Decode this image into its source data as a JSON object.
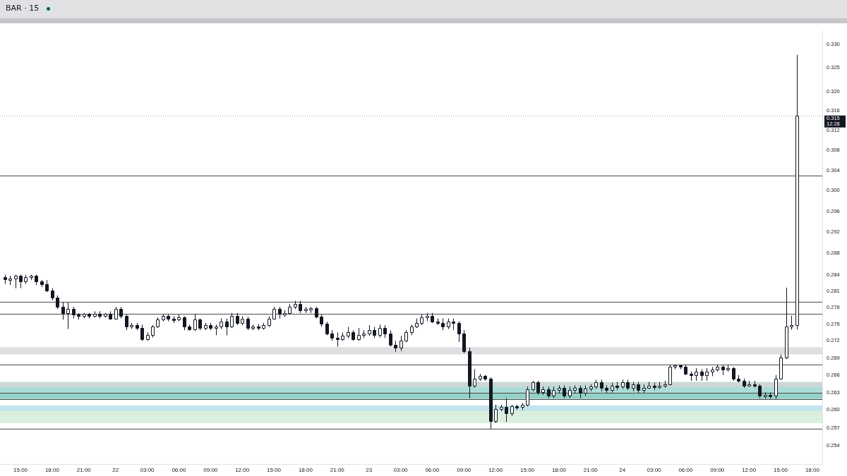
{
  "chart_data": {
    "type": "candlestick",
    "title": "BAR · 15",
    "categories": [
      null,
      null,
      null,
      "15:00",
      null,
      null,
      null,
      null,
      null,
      "18:00",
      null,
      null,
      null,
      null,
      null,
      "21:00",
      null,
      null,
      null,
      null,
      null,
      "22",
      null,
      null,
      null,
      null,
      null,
      "03:00",
      null,
      null,
      null,
      null,
      null,
      "06:00",
      null,
      null,
      null,
      null,
      null,
      "09:00",
      null,
      null,
      null,
      null,
      null,
      "12:00",
      null,
      null,
      null,
      null,
      null,
      "15:00",
      null,
      null,
      null,
      null,
      null,
      "18:00",
      null,
      null,
      null,
      null,
      null,
      "21:00",
      null,
      null,
      null,
      null,
      null,
      "23",
      null,
      null,
      null,
      null,
      null,
      "03:00",
      null,
      null,
      null,
      null,
      null,
      "06:00",
      null,
      null,
      null,
      null,
      null,
      "09:00",
      null,
      null,
      null,
      null,
      null,
      "12:00",
      null,
      null,
      null,
      null,
      null,
      "15:00",
      null,
      null,
      null,
      null,
      null,
      "18:00",
      null,
      null,
      null,
      null,
      null,
      "21:00",
      null,
      null,
      null,
      null,
      null,
      "24",
      null,
      null,
      null,
      null,
      null,
      "03:00",
      null,
      null,
      null,
      null,
      null,
      "06:00",
      null,
      null,
      null,
      null,
      null,
      "09:00",
      null,
      null,
      null,
      null,
      null,
      "12:00",
      null,
      null,
      null,
      null,
      null,
      "15:00",
      null,
      null,
      null,
      null,
      null,
      "18:00",
      null
    ],
    "ohlc": [
      [
        0.2836,
        0.284,
        0.2823,
        0.2831
      ],
      [
        0.2831,
        0.2838,
        0.2821,
        0.2833
      ],
      [
        0.2833,
        0.284,
        0.2815,
        0.2838
      ],
      [
        0.2838,
        0.284,
        0.2815,
        0.2827
      ],
      [
        0.2827,
        0.284,
        0.2823,
        0.2836
      ],
      [
        0.2836,
        0.284,
        0.283,
        0.2838
      ],
      [
        0.2838,
        0.284,
        0.2821,
        0.2827
      ],
      [
        0.2827,
        0.283,
        0.2817,
        0.2823
      ],
      [
        0.2823,
        0.283,
        0.2808,
        0.2811
      ],
      [
        0.2811,
        0.2815,
        0.2793,
        0.2798
      ],
      [
        0.2798,
        0.2802,
        0.2777,
        0.2781
      ],
      [
        0.2781,
        0.2789,
        0.2758,
        0.277
      ],
      [
        0.277,
        0.2789,
        0.2741,
        0.2777
      ],
      [
        0.2777,
        0.2781,
        0.276,
        0.2767
      ],
      [
        0.2767,
        0.277,
        0.2758,
        0.2764
      ],
      [
        0.2764,
        0.277,
        0.276,
        0.2768
      ],
      [
        0.2768,
        0.277,
        0.276,
        0.2765
      ],
      [
        0.2765,
        0.2773,
        0.2762,
        0.2769
      ],
      [
        0.2769,
        0.2773,
        0.276,
        0.2764
      ],
      [
        0.2764,
        0.277,
        0.2762,
        0.2768
      ],
      [
        0.2768,
        0.2773,
        0.2758,
        0.276
      ],
      [
        0.276,
        0.2781,
        0.2758,
        0.2777
      ],
      [
        0.2777,
        0.2781,
        0.276,
        0.2764
      ],
      [
        0.2764,
        0.2767,
        0.2739,
        0.2745
      ],
      [
        0.2745,
        0.2752,
        0.2741,
        0.2748
      ],
      [
        0.2748,
        0.2752,
        0.2739,
        0.2743
      ],
      [
        0.2743,
        0.2749,
        0.272,
        0.2723
      ],
      [
        0.2723,
        0.2735,
        0.272,
        0.273
      ],
      [
        0.273,
        0.2748,
        0.2726,
        0.2745
      ],
      [
        0.2745,
        0.2762,
        0.2743,
        0.2758
      ],
      [
        0.2758,
        0.2768,
        0.2755,
        0.2764
      ],
      [
        0.2764,
        0.2768,
        0.2755,
        0.276
      ],
      [
        0.276,
        0.2764,
        0.2752,
        0.2758
      ],
      [
        0.2758,
        0.2767,
        0.2755,
        0.2762
      ],
      [
        0.2762,
        0.2764,
        0.2739,
        0.2745
      ],
      [
        0.2745,
        0.2749,
        0.2738,
        0.274
      ],
      [
        0.274,
        0.2768,
        0.2738,
        0.2758
      ],
      [
        0.2758,
        0.276,
        0.2739,
        0.2743
      ],
      [
        0.2743,
        0.2752,
        0.2739,
        0.2748
      ],
      [
        0.2748,
        0.2752,
        0.2739,
        0.2743
      ],
      [
        0.2743,
        0.2749,
        0.273,
        0.2745
      ],
      [
        0.2745,
        0.276,
        0.2741,
        0.2755
      ],
      [
        0.2755,
        0.276,
        0.273,
        0.2745
      ],
      [
        0.2745,
        0.277,
        0.2743,
        0.2764
      ],
      [
        0.2764,
        0.277,
        0.2748,
        0.2752
      ],
      [
        0.2752,
        0.2764,
        0.2748,
        0.276
      ],
      [
        0.276,
        0.2763,
        0.2739,
        0.2743
      ],
      [
        0.2743,
        0.2749,
        0.2739,
        0.2745
      ],
      [
        0.2745,
        0.275,
        0.2739,
        0.2743
      ],
      [
        0.2743,
        0.2752,
        0.274,
        0.2748
      ],
      [
        0.2748,
        0.2764,
        0.2745,
        0.276
      ],
      [
        0.276,
        0.2781,
        0.2758,
        0.2777
      ],
      [
        0.2777,
        0.2781,
        0.276,
        0.2768
      ],
      [
        0.2768,
        0.2775,
        0.2763,
        0.277
      ],
      [
        0.277,
        0.2786,
        0.2768,
        0.2781
      ],
      [
        0.2781,
        0.2792,
        0.2777,
        0.2786
      ],
      [
        0.2786,
        0.2792,
        0.277,
        0.2775
      ],
      [
        0.2775,
        0.2781,
        0.277,
        0.2777
      ],
      [
        0.2777,
        0.2781,
        0.277,
        0.2778
      ],
      [
        0.2778,
        0.2781,
        0.276,
        0.2763
      ],
      [
        0.2763,
        0.2767,
        0.2745,
        0.275
      ],
      [
        0.275,
        0.2754,
        0.273,
        0.2733
      ],
      [
        0.2733,
        0.2739,
        0.272,
        0.2726
      ],
      [
        0.2726,
        0.2735,
        0.271,
        0.2723
      ],
      [
        0.2723,
        0.2735,
        0.272,
        0.2729
      ],
      [
        0.2729,
        0.2745,
        0.2725,
        0.2735
      ],
      [
        0.2735,
        0.2739,
        0.272,
        0.2723
      ],
      [
        0.2723,
        0.2743,
        0.272,
        0.273
      ],
      [
        0.273,
        0.2739,
        0.2725,
        0.2733
      ],
      [
        0.2733,
        0.2748,
        0.2729,
        0.2739
      ],
      [
        0.2739,
        0.2745,
        0.2725,
        0.273
      ],
      [
        0.273,
        0.2749,
        0.2726,
        0.2743
      ],
      [
        0.2743,
        0.2748,
        0.2725,
        0.2733
      ],
      [
        0.2733,
        0.2739,
        0.271,
        0.2713
      ],
      [
        0.2713,
        0.272,
        0.27,
        0.2708
      ],
      [
        0.2708,
        0.2729,
        0.2702,
        0.272
      ],
      [
        0.272,
        0.2739,
        0.2718,
        0.2735
      ],
      [
        0.2735,
        0.2749,
        0.273,
        0.2745
      ],
      [
        0.2745,
        0.276,
        0.2743,
        0.2752
      ],
      [
        0.2752,
        0.2767,
        0.2748,
        0.2762
      ],
      [
        0.2762,
        0.277,
        0.2755,
        0.2764
      ],
      [
        0.2764,
        0.277,
        0.2752,
        0.2755
      ],
      [
        0.2755,
        0.276,
        0.2748,
        0.2752
      ],
      [
        0.2752,
        0.276,
        0.2739,
        0.2745
      ],
      [
        0.2745,
        0.276,
        0.2741,
        0.2755
      ],
      [
        0.2755,
        0.276,
        0.2739,
        0.2752
      ],
      [
        0.2752,
        0.2755,
        0.2718,
        0.2733
      ],
      [
        0.2733,
        0.2739,
        0.2698,
        0.2702
      ],
      [
        0.2702,
        0.2708,
        0.262,
        0.2642
      ],
      [
        0.2642,
        0.267,
        0.2638,
        0.2654
      ],
      [
        0.2654,
        0.2662,
        0.265,
        0.2658
      ],
      [
        0.2658,
        0.266,
        0.265,
        0.2654
      ],
      [
        0.2654,
        0.2656,
        0.2568,
        0.2582
      ],
      [
        0.2582,
        0.2609,
        0.2578,
        0.2602
      ],
      [
        0.2602,
        0.2609,
        0.2598,
        0.2605
      ],
      [
        0.2605,
        0.262,
        0.258,
        0.2594
      ],
      [
        0.2594,
        0.2609,
        0.259,
        0.2606
      ],
      [
        0.2606,
        0.2609,
        0.26,
        0.2605
      ],
      [
        0.2605,
        0.2612,
        0.26,
        0.2609
      ],
      [
        0.2609,
        0.264,
        0.2606,
        0.2636
      ],
      [
        0.2636,
        0.265,
        0.2632,
        0.2648
      ],
      [
        0.2648,
        0.265,
        0.2626,
        0.263
      ],
      [
        0.263,
        0.264,
        0.2626,
        0.2636
      ],
      [
        0.2636,
        0.264,
        0.262,
        0.2624
      ],
      [
        0.2624,
        0.264,
        0.262,
        0.2634
      ],
      [
        0.2634,
        0.2642,
        0.2629,
        0.2638
      ],
      [
        0.2638,
        0.2642,
        0.262,
        0.2624
      ],
      [
        0.2624,
        0.264,
        0.262,
        0.2634
      ],
      [
        0.2634,
        0.2642,
        0.2629,
        0.2638
      ],
      [
        0.2638,
        0.2642,
        0.262,
        0.2629
      ],
      [
        0.2629,
        0.2642,
        0.2624,
        0.2637
      ],
      [
        0.2637,
        0.2644,
        0.2632,
        0.264
      ],
      [
        0.264,
        0.2652,
        0.2636,
        0.2648
      ],
      [
        0.2648,
        0.2652,
        0.2632,
        0.2638
      ],
      [
        0.2638,
        0.2642,
        0.2629,
        0.2634
      ],
      [
        0.2634,
        0.2647,
        0.263,
        0.2642
      ],
      [
        0.2642,
        0.2648,
        0.2634,
        0.264
      ],
      [
        0.264,
        0.2652,
        0.2636,
        0.2648
      ],
      [
        0.2648,
        0.2652,
        0.2634,
        0.2638
      ],
      [
        0.2638,
        0.2648,
        0.2632,
        0.2644
      ],
      [
        0.2644,
        0.2648,
        0.2629,
        0.2634
      ],
      [
        0.2634,
        0.2644,
        0.2629,
        0.2638
      ],
      [
        0.2638,
        0.2648,
        0.2636,
        0.2642
      ],
      [
        0.2642,
        0.2647,
        0.2634,
        0.264
      ],
      [
        0.264,
        0.2648,
        0.2636,
        0.2642
      ],
      [
        0.2642,
        0.265,
        0.2638,
        0.2644
      ],
      [
        0.2644,
        0.2678,
        0.2642,
        0.2674
      ],
      [
        0.2674,
        0.2678,
        0.267,
        0.2677
      ],
      [
        0.2677,
        0.2678,
        0.267,
        0.2674
      ],
      [
        0.2674,
        0.2678,
        0.266,
        0.2662
      ],
      [
        0.2662,
        0.2666,
        0.265,
        0.266
      ],
      [
        0.266,
        0.2672,
        0.265,
        0.2666
      ],
      [
        0.2666,
        0.267,
        0.265,
        0.266
      ],
      [
        0.266,
        0.2672,
        0.265,
        0.2666
      ],
      [
        0.2666,
        0.2674,
        0.2658,
        0.267
      ],
      [
        0.267,
        0.2678,
        0.2666,
        0.2674
      ],
      [
        0.2674,
        0.2678,
        0.266,
        0.267
      ],
      [
        0.267,
        0.2678,
        0.2666,
        0.2672
      ],
      [
        0.2672,
        0.2674,
        0.265,
        0.2654
      ],
      [
        0.2654,
        0.266,
        0.2647,
        0.265
      ],
      [
        0.265,
        0.2654,
        0.2638,
        0.2642
      ],
      [
        0.2642,
        0.265,
        0.264,
        0.2644
      ],
      [
        0.2644,
        0.265,
        0.2638,
        0.2642
      ],
      [
        0.2642,
        0.2644,
        0.262,
        0.2624
      ],
      [
        0.2624,
        0.263,
        0.2619,
        0.2626
      ],
      [
        0.2626,
        0.263,
        0.2619,
        0.2624
      ],
      [
        0.2624,
        0.266,
        0.2619,
        0.2654
      ],
      [
        0.2654,
        0.2696,
        0.2652,
        0.269
      ],
      [
        0.269,
        0.2816,
        0.2688,
        0.2745
      ],
      [
        0.2745,
        0.2765,
        0.274,
        0.2748
      ],
      [
        0.2748,
        0.3278,
        0.274,
        0.315
      ],
      null,
      null,
      null,
      null
    ],
    "colors": [
      "#131722",
      "#ffffff",
      "#ffffff",
      "#131722",
      "#ffffff",
      "#ffffff",
      "#131722",
      "#131722",
      "#131722",
      "#131722",
      "#131722",
      "#131722",
      "#ffffff",
      "#131722",
      "#131722",
      "#ffffff",
      "#131722",
      "#ffffff",
      "#131722",
      "#ffffff",
      "#131722",
      "#ffffff",
      "#131722",
      "#131722",
      "#ffffff",
      "#131722",
      "#131722",
      "#ffffff",
      "#ffffff",
      "#ffffff",
      "#ffffff",
      "#131722",
      "#131722",
      "#ffffff",
      "#131722",
      "#131722",
      "#ffffff",
      "#131722",
      "#ffffff",
      "#131722",
      "#ffffff",
      "#ffffff",
      "#131722",
      "#ffffff",
      "#131722",
      "#ffffff",
      "#131722",
      "#ffffff",
      "#131722",
      "#ffffff",
      "#ffffff",
      "#ffffff",
      "#131722",
      "#ffffff",
      "#ffffff",
      "#ffffff",
      "#131722",
      "#ffffff",
      "#ffffff",
      "#131722",
      "#131722",
      "#131722",
      "#131722",
      "#131722",
      "#ffffff",
      "#ffffff",
      "#131722",
      "#ffffff",
      "#ffffff",
      "#ffffff",
      "#131722",
      "#ffffff",
      "#131722",
      "#131722",
      "#131722",
      "#ffffff",
      "#ffffff",
      "#ffffff",
      "#ffffff",
      "#ffffff",
      "#ffffff",
      "#131722",
      "#131722",
      "#131722",
      "#ffffff",
      "#131722",
      "#131722",
      "#131722",
      "#131722",
      "#ffffff",
      "#ffffff",
      "#131722",
      "#131722",
      "#ffffff",
      "#ffffff",
      "#131722",
      "#ffffff",
      "#131722",
      "#ffffff",
      "#ffffff",
      "#ffffff",
      "#131722",
      "#ffffff",
      "#131722",
      "#ffffff",
      "#ffffff",
      "#131722",
      "#ffffff",
      "#ffffff",
      "#131722",
      "#ffffff",
      "#ffffff",
      "#ffffff",
      "#131722",
      "#131722",
      "#ffffff",
      "#131722",
      "#ffffff",
      "#131722",
      "#ffffff",
      "#131722",
      "#ffffff",
      "#ffffff",
      "#131722",
      "#ffffff",
      "#ffffff",
      "#ffffff",
      "#ffffff",
      "#131722",
      "#131722",
      "#131722",
      "#ffffff",
      "#131722",
      "#ffffff",
      "#ffffff",
      "#ffffff",
      "#131722",
      "#ffffff",
      "#131722",
      "#131722",
      "#131722",
      "#ffffff",
      "#131722",
      "#131722",
      "#ffffff",
      "#131722",
      "#ffffff",
      "#ffffff",
      "#ffffff",
      "#ffffff",
      "#ffffff",
      null,
      null,
      null,
      null
    ],
    "ylim": [
      0.251,
      0.333
    ],
    "yticks": [
      0.254,
      0.257,
      {
        "value": 0.26,
        "label": "0.260"
      },
      0.263,
      0.266,
      0.269,
      0.272,
      0.275,
      0.278,
      0.281,
      0.284,
      0.288,
      0.292,
      0.296,
      {
        "value": 0.3,
        "label": "0.300"
      },
      0.304,
      0.308,
      0.312,
      0.316,
      {
        "value": 0.32,
        "label": "0.320"
      },
      0.325,
      {
        "value": 0.33,
        "label": "0.330"
      }
    ],
    "log": "y",
    "bands": [
      {
        "axis": "y",
        "from": 0.2629,
        "to": 0.2648,
        "color": "#e0f1f4"
      },
      {
        "axis": "y",
        "from": 0.2598,
        "to": 0.2608,
        "color": "#c5e5ec"
      },
      {
        "axis": "y",
        "from": 0.2578,
        "to": 0.2598,
        "color": "#dbefdf"
      },
      {
        "axis": "y",
        "from": 0.2619,
        "to": 0.264,
        "color": "#acdcd7"
      },
      {
        "axis": "y",
        "from": 0.2619,
        "to": 0.2629,
        "color": "#93d1c9"
      },
      {
        "axis": "y",
        "from": 0.264,
        "to": 0.2648,
        "color": "#cfd6d6"
      },
      {
        "axis": "y",
        "from": 0.2696,
        "to": 0.2709,
        "color": "#dedfe1"
      }
    ],
    "ref_lines": [
      {
        "axis": "y",
        "value": 0.303,
        "color": "#4a4a4a"
      },
      {
        "axis": "y",
        "value": 0.279,
        "color": "#4a4a4a"
      },
      {
        "axis": "y",
        "value": 0.2769,
        "color": "#4a4a4a"
      },
      {
        "axis": "y",
        "value": 0.2678,
        "color": "#4a4a4a"
      },
      {
        "axis": "y",
        "value": 0.2629,
        "color": "#4a4a4a"
      },
      {
        "axis": "y",
        "value": 0.2619,
        "color": "#4a4a4a"
      },
      {
        "axis": "y",
        "value": 0.2568,
        "color": "#4a4a4a"
      },
      {
        "axis": "y",
        "value": 0.315,
        "label": "0.315\n12:28",
        "color": "#9aa3b5",
        "line_style": "dotted"
      }
    ]
  }
}
